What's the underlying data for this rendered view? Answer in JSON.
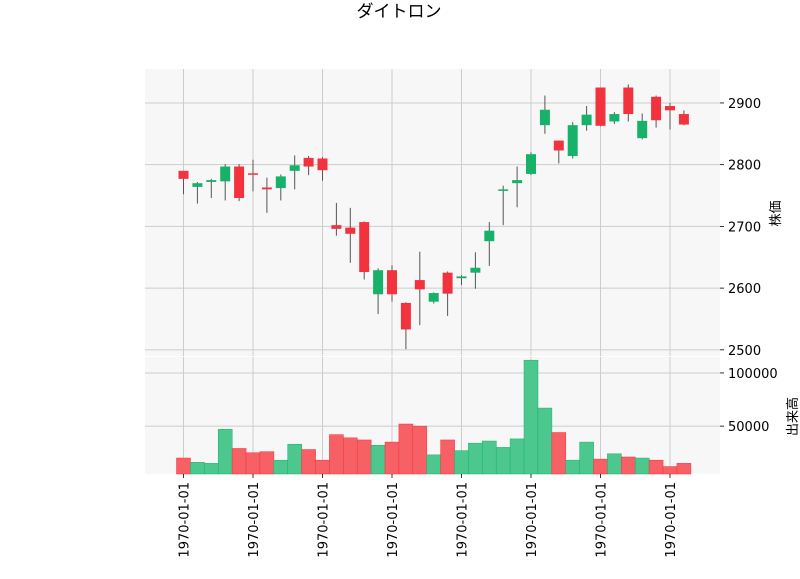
{
  "chart_data": {
    "type": "candlestick",
    "title": "ダイトロン",
    "price_panel": {
      "ylabel": "株価",
      "ylim": [
        2490,
        2955
      ],
      "yticks": [
        2500,
        2600,
        2700,
        2800,
        2900
      ],
      "ytick_labels": [
        "2500",
        "2600",
        "2700",
        "2800",
        "2900"
      ]
    },
    "volume_panel": {
      "ylabel": "出来高",
      "ylim": [
        5000,
        115000
      ],
      "yticks": [
        50000,
        100000
      ],
      "ytick_labels": [
        "50000",
        "100000"
      ]
    },
    "x_tick_labels": [
      "1970-01-01",
      "1970-01-01",
      "1970-01-01",
      "1970-01-01",
      "1970-01-01",
      "1970-01-01",
      "1970-01-01",
      "1970-01-01"
    ],
    "x_tick_indices": [
      0,
      5,
      10,
      15,
      20,
      25,
      30,
      35
    ],
    "colors": {
      "up": "#17b26a",
      "down": "#f2333d",
      "up_volume": "#4cc88f",
      "down_volume": "#f76065",
      "wick": "#555555",
      "panel_bg": "#f7f7f7",
      "grid": "#cccccc"
    },
    "candles": [
      {
        "open": 2790,
        "high": 2790,
        "low": 2752,
        "close": 2777,
        "volume": 20000
      },
      {
        "open": 2764,
        "high": 2772,
        "low": 2737,
        "close": 2770,
        "volume": 16000
      },
      {
        "open": 2772,
        "high": 2777,
        "low": 2746,
        "close": 2775,
        "volume": 15000
      },
      {
        "open": 2773,
        "high": 2801,
        "low": 2742,
        "close": 2797,
        "volume": 47000
      },
      {
        "open": 2797,
        "high": 2801,
        "low": 2741,
        "close": 2746,
        "volume": 29000
      },
      {
        "open": 2786,
        "high": 2808,
        "low": 2757,
        "close": 2785,
        "volume": 25000
      },
      {
        "open": 2763,
        "high": 2779,
        "low": 2722,
        "close": 2760,
        "volume": 26000
      },
      {
        "open": 2762,
        "high": 2784,
        "low": 2742,
        "close": 2781,
        "volume": 18000
      },
      {
        "open": 2790,
        "high": 2815,
        "low": 2760,
        "close": 2799,
        "volume": 33000
      },
      {
        "open": 2811,
        "high": 2814,
        "low": 2783,
        "close": 2797,
        "volume": 28000
      },
      {
        "open": 2810,
        "high": 2812,
        "low": 2774,
        "close": 2791,
        "volume": 18000
      },
      {
        "open": 2702,
        "high": 2738,
        "low": 2685,
        "close": 2696,
        "volume": 42000
      },
      {
        "open": 2698,
        "high": 2730,
        "low": 2641,
        "close": 2688,
        "volume": 39000
      },
      {
        "open": 2707,
        "high": 2708,
        "low": 2614,
        "close": 2626,
        "volume": 37000
      },
      {
        "open": 2590,
        "high": 2632,
        "low": 2558,
        "close": 2629,
        "volume": 32000
      },
      {
        "open": 2629,
        "high": 2637,
        "low": 2578,
        "close": 2590,
        "volume": 35000
      },
      {
        "open": 2576,
        "high": 2577,
        "low": 2501,
        "close": 2533,
        "volume": 52000
      },
      {
        "open": 2613,
        "high": 2659,
        "low": 2540,
        "close": 2598,
        "volume": 50000
      },
      {
        "open": 2578,
        "high": 2593,
        "low": 2575,
        "close": 2592,
        "volume": 23000
      },
      {
        "open": 2625,
        "high": 2627,
        "low": 2555,
        "close": 2591,
        "volume": 37000
      },
      {
        "open": 2616,
        "high": 2621,
        "low": 2605,
        "close": 2619,
        "volume": 27000
      },
      {
        "open": 2625,
        "high": 2658,
        "low": 2599,
        "close": 2633,
        "volume": 34000
      },
      {
        "open": 2676,
        "high": 2707,
        "low": 2636,
        "close": 2693,
        "volume": 36000
      },
      {
        "open": 2758,
        "high": 2766,
        "low": 2702,
        "close": 2760,
        "volume": 30000
      },
      {
        "open": 2770,
        "high": 2797,
        "low": 2731,
        "close": 2775,
        "volume": 38000
      },
      {
        "open": 2785,
        "high": 2820,
        "low": 2783,
        "close": 2817,
        "volume": 112000
      },
      {
        "open": 2864,
        "high": 2912,
        "low": 2850,
        "close": 2889,
        "volume": 67000
      },
      {
        "open": 2839,
        "high": 2839,
        "low": 2802,
        "close": 2823,
        "volume": 44000
      },
      {
        "open": 2814,
        "high": 2869,
        "low": 2810,
        "close": 2864,
        "volume": 18000
      },
      {
        "open": 2864,
        "high": 2895,
        "low": 2855,
        "close": 2881,
        "volume": 35000
      },
      {
        "open": 2925,
        "high": 2925,
        "low": 2862,
        "close": 2863,
        "volume": 19000
      },
      {
        "open": 2870,
        "high": 2885,
        "low": 2866,
        "close": 2882,
        "volume": 24000
      },
      {
        "open": 2925,
        "high": 2930,
        "low": 2870,
        "close": 2882,
        "volume": 21000
      },
      {
        "open": 2843,
        "high": 2883,
        "low": 2841,
        "close": 2871,
        "volume": 20000
      },
      {
        "open": 2910,
        "high": 2912,
        "low": 2860,
        "close": 2872,
        "volume": 18000
      },
      {
        "open": 2895,
        "high": 2900,
        "low": 2857,
        "close": 2888,
        "volume": 12000
      },
      {
        "open": 2882,
        "high": 2888,
        "low": 2864,
        "close": 2865,
        "volume": 15000
      }
    ]
  }
}
